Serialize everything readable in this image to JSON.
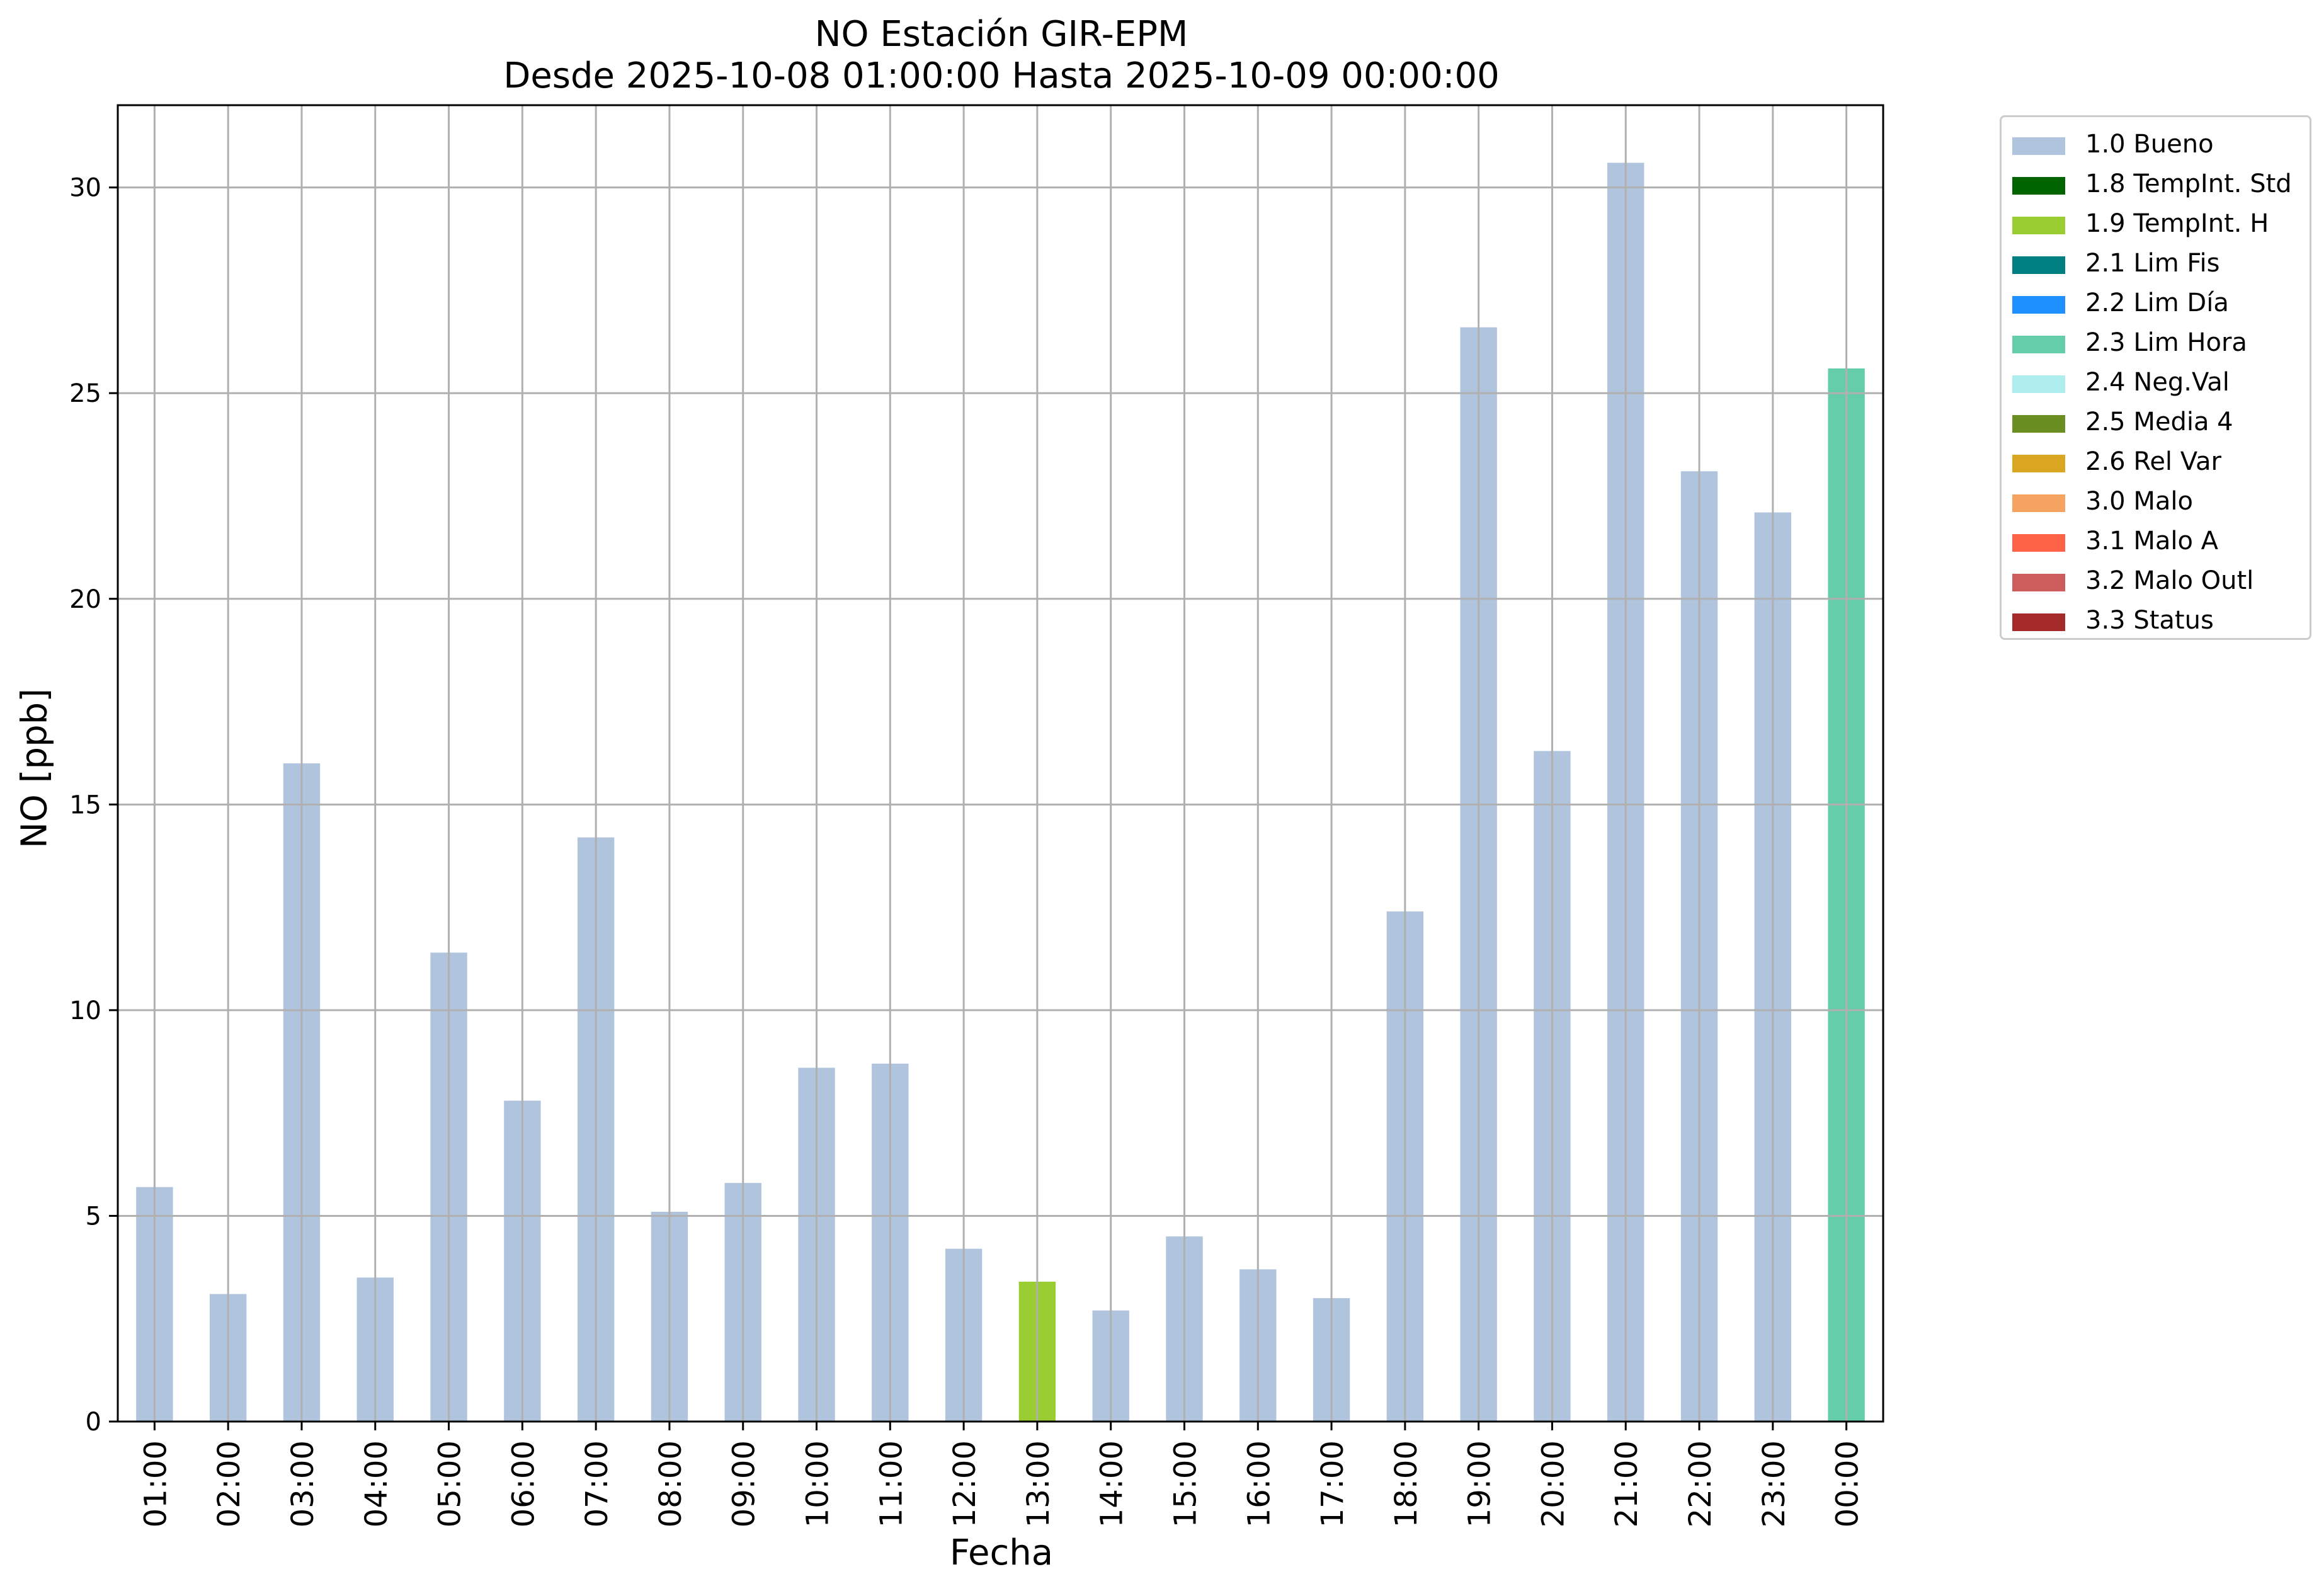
{
  "chart_data": {
    "type": "bar",
    "title": "NO Estación GIR-EPM",
    "subtitle": "Desde 2025-10-08 01:00:00 Hasta 2025-10-09 00:00:00",
    "xlabel": "Fecha",
    "ylabel": "NO [ppb]",
    "ylim": [
      0,
      32
    ],
    "yticks": [
      0,
      5,
      10,
      15,
      20,
      25,
      30
    ],
    "grid": true,
    "legend_position": "outside-top-right",
    "categories": [
      "01:00",
      "02:00",
      "03:00",
      "04:00",
      "05:00",
      "06:00",
      "07:00",
      "08:00",
      "09:00",
      "10:00",
      "11:00",
      "12:00",
      "13:00",
      "14:00",
      "15:00",
      "16:00",
      "17:00",
      "18:00",
      "19:00",
      "20:00",
      "21:00",
      "22:00",
      "23:00",
      "00:00"
    ],
    "values": [
      5.7,
      3.1,
      16.0,
      3.5,
      11.4,
      7.8,
      14.2,
      5.1,
      5.8,
      8.6,
      8.7,
      4.2,
      3.4,
      2.7,
      4.5,
      3.7,
      3.0,
      12.4,
      26.6,
      16.3,
      30.6,
      23.1,
      22.1,
      25.6
    ],
    "flags": [
      "1.0 Bueno",
      "1.0 Bueno",
      "1.0 Bueno",
      "1.0 Bueno",
      "1.0 Bueno",
      "1.0 Bueno",
      "1.0 Bueno",
      "1.0 Bueno",
      "1.0 Bueno",
      "1.0 Bueno",
      "1.0 Bueno",
      "1.0 Bueno",
      "1.9 TempInt. H",
      "1.0 Bueno",
      "1.0 Bueno",
      "1.0 Bueno",
      "1.0 Bueno",
      "1.0 Bueno",
      "1.0 Bueno",
      "1.0 Bueno",
      "1.0 Bueno",
      "1.0 Bueno",
      "1.0 Bueno",
      "2.3 Lim Hora"
    ],
    "legend": [
      {
        "label": "1.0 Bueno",
        "color": "#b0c4de"
      },
      {
        "label": "1.8 TempInt. Std",
        "color": "#006400"
      },
      {
        "label": "1.9 TempInt. H",
        "color": "#9acd32"
      },
      {
        "label": "2.1 Lim Fis",
        "color": "#008080"
      },
      {
        "label": "2.2 Lim Día",
        "color": "#1e90ff"
      },
      {
        "label": "2.3 Lim Hora",
        "color": "#66cdaa"
      },
      {
        "label": "2.4 Neg.Val",
        "color": "#afeeee"
      },
      {
        "label": "2.5 Media 4",
        "color": "#6b8e23"
      },
      {
        "label": "2.6 Rel Var",
        "color": "#daa520"
      },
      {
        "label": "3.0 Malo",
        "color": "#f4a460"
      },
      {
        "label": "3.1 Malo A",
        "color": "#ff6347"
      },
      {
        "label": "3.2 Malo Outl",
        "color": "#cd5c5c"
      },
      {
        "label": "3.3 Status",
        "color": "#a52a2a"
      }
    ]
  }
}
